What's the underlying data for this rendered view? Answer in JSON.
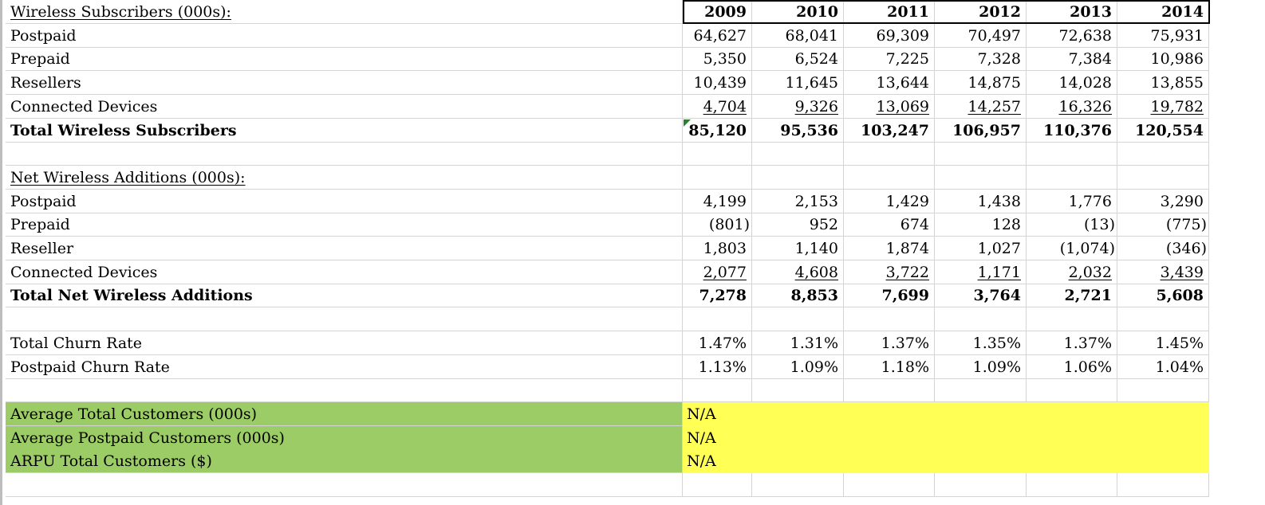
{
  "sheet": {
    "years": [
      "2009",
      "2010",
      "2011",
      "2012",
      "2013",
      "2014"
    ],
    "rows": [
      {
        "label": "Wireless Subscribers (000s):",
        "type": "section",
        "values": null
      },
      {
        "label": "Postpaid",
        "type": "data",
        "values": [
          "64,627",
          "68,041",
          "69,309",
          "70,497",
          "72,638",
          "75,931"
        ]
      },
      {
        "label": "Prepaid",
        "type": "data",
        "values": [
          "5,350",
          "6,524",
          "7,225",
          "7,328",
          "7,384",
          "10,986"
        ]
      },
      {
        "label": "Resellers",
        "type": "data",
        "values": [
          "10,439",
          "11,645",
          "13,644",
          "14,875",
          "14,028",
          "13,855"
        ]
      },
      {
        "label": "Connected Devices",
        "type": "underline",
        "values": [
          "4,704",
          "9,326",
          "13,069",
          "14,257",
          "16,326",
          "19,782"
        ]
      },
      {
        "label": "Total Wireless Subscribers",
        "type": "total",
        "values": [
          "85,120",
          "95,536",
          "103,247",
          "106,957",
          "110,376",
          "120,554"
        ]
      },
      {
        "label": "",
        "type": "blank",
        "values": null
      },
      {
        "label": "Net Wireless Additions (000s):",
        "type": "section",
        "values": null
      },
      {
        "label": "Postpaid",
        "type": "data",
        "values": [
          "4,199",
          "2,153",
          "1,429",
          "1,438",
          "1,776",
          "3,290"
        ]
      },
      {
        "label": "Prepaid",
        "type": "data",
        "values": [
          "(801)",
          "952",
          "674",
          "128",
          "(13)",
          "(775)"
        ]
      },
      {
        "label": "Reseller",
        "type": "data",
        "values": [
          "1,803",
          "1,140",
          "1,874",
          "1,027",
          "(1,074)",
          "(346)"
        ]
      },
      {
        "label": "Connected Devices",
        "type": "underline",
        "values": [
          "2,077",
          "4,608",
          "3,722",
          "1,171",
          "2,032",
          "3,439"
        ]
      },
      {
        "label": "Total Net Wireless Additions",
        "type": "total",
        "values": [
          "7,278",
          "8,853",
          "7,699",
          "3,764",
          "2,721",
          "5,608"
        ]
      },
      {
        "label": "",
        "type": "blank",
        "values": null
      },
      {
        "label": "Total Churn Rate",
        "type": "data",
        "values": [
          "1.47%",
          "1.31%",
          "1.37%",
          "1.35%",
          "1.37%",
          "1.45%"
        ]
      },
      {
        "label": "Postpaid Churn Rate",
        "type": "data",
        "values": [
          "1.13%",
          "1.09%",
          "1.18%",
          "1.09%",
          "1.06%",
          "1.04%"
        ]
      },
      {
        "label": "",
        "type": "blank",
        "values": null
      },
      {
        "label": "Average Total Customers (000s)",
        "type": "input",
        "na": "N/A",
        "values": null
      },
      {
        "label": "Average Postpaid Customers (000s)",
        "type": "input",
        "na": "N/A",
        "values": null
      },
      {
        "label": "ARPU Total Customers ($)",
        "type": "input",
        "na": "N/A",
        "values": null
      },
      {
        "label": "",
        "type": "blank",
        "values": null
      }
    ]
  },
  "colors": {
    "label_fill": "#9ccc65",
    "input_fill": "#ffff55",
    "gridline": "#d4d4d4",
    "error_indicator": "#2e7d32"
  }
}
